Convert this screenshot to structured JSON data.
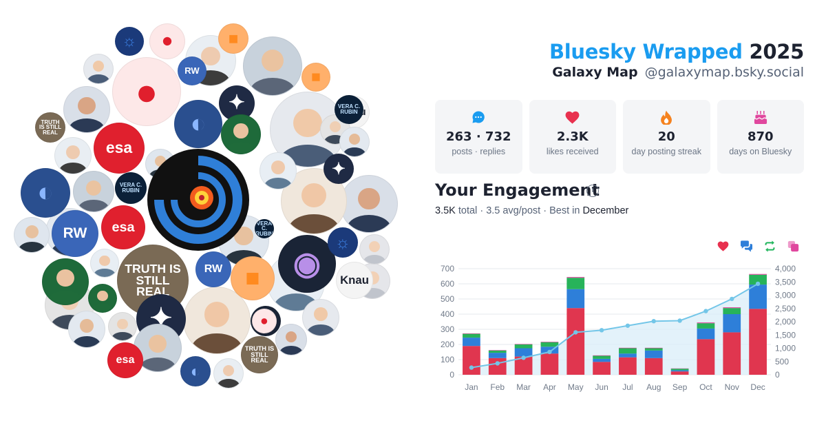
{
  "header": {
    "brand": "Bluesky Wrapped",
    "year": "2025",
    "display_name": "Galaxy Map",
    "handle": "@galaxymap.bsky.social"
  },
  "stats": [
    {
      "icon": "chat-bubble-icon",
      "value": "263 · 732",
      "label": "posts · replies",
      "color": "#1a9cf0"
    },
    {
      "icon": "heart-icon",
      "value": "2.3K",
      "label": "likes received",
      "color": "#e8314f"
    },
    {
      "icon": "flame-icon",
      "value": "20",
      "label": "day posting streak",
      "color": "#f5821f"
    },
    {
      "icon": "cake-icon",
      "value": "870",
      "label": "days on Bluesky",
      "color": "#e0479e"
    }
  ],
  "engagement": {
    "title": "Your Engagement",
    "info_icon": "info-icon",
    "total": "3.5K",
    "total_word": "total",
    "avg": "3.5 avg/post",
    "best_prefix": "Best in",
    "best_month": "December",
    "legend": [
      {
        "name": "likes",
        "icon": "heart-icon",
        "color": "#e8314f"
      },
      {
        "name": "replies",
        "icon": "reply-icon",
        "color": "#2e7fd9"
      },
      {
        "name": "reposts",
        "icon": "repost-icon",
        "color": "#1fb55b"
      },
      {
        "name": "quotes",
        "icon": "quote-icon",
        "color": "#e0479e"
      }
    ]
  },
  "chart_data": {
    "type": "bar",
    "stacked": true,
    "categories": [
      "Jan",
      "Feb",
      "Mar",
      "Apr",
      "May",
      "Jun",
      "Jul",
      "Aug",
      "Sep",
      "Oct",
      "Nov",
      "Dec"
    ],
    "series": [
      {
        "values": [
          190,
          110,
          120,
          140,
          440,
          85,
          115,
          110,
          22,
          235,
          280,
          435
        ],
        "color": "#e0364f"
      },
      {
        "values": [
          55,
          35,
          55,
          45,
          125,
          20,
          25,
          50,
          8,
          70,
          120,
          160
        ],
        "color": "#2e7fd9"
      },
      {
        "values": [
          25,
          15,
          25,
          30,
          75,
          20,
          35,
          15,
          10,
          35,
          40,
          65
        ],
        "color": "#27b35a"
      },
      {
        "values": [
          3,
          3,
          3,
          3,
          5,
          3,
          3,
          3,
          2,
          5,
          5,
          5
        ],
        "color": "#e0479e"
      }
    ],
    "cumulative": {
      "values": [
        270,
        430,
        640,
        860,
        1600,
        1680,
        1850,
        2020,
        2040,
        2400,
        2860,
        3430
      ],
      "color": "#73c6e8"
    },
    "ylim": [
      0,
      700
    ],
    "yticks": [
      0,
      100,
      200,
      300,
      400,
      500,
      600,
      700
    ],
    "y2lim": [
      0,
      4000
    ],
    "y2ticks": [
      "0",
      "500",
      "1,000",
      "1,500",
      "2,000",
      "2,500",
      "3,000",
      "3,500",
      "4,000"
    ],
    "grid": true
  },
  "bubbles": [
    {
      "color": "#1b3a7a",
      "kind": "mark",
      "label": "",
      "glyph": "☼",
      "fg": "#3b7ee0"
    },
    {
      "color": "#fde8e8",
      "kind": "mark",
      "label": "",
      "glyph": "●",
      "fg": "#e01f2d"
    },
    {
      "color": "#e6e9ee",
      "kind": "person",
      "skin": "#f0c9a8",
      "shirt": "#4a5d78"
    },
    {
      "color": "#d9dfe8",
      "kind": "person",
      "skin": "#d9a585",
      "shirt": "#2b3a55"
    },
    {
      "color": "#7a6a55",
      "kind": "mark",
      "label": "TRUTH IS STILL REAL",
      "glyph": "",
      "fg": "#ffffff"
    },
    {
      "color": "#e9eef3",
      "kind": "person",
      "skin": "#eecbb0",
      "shirt": "#3c3c3c"
    },
    {
      "color": "#2a4f8f",
      "kind": "mark",
      "label": "",
      "glyph": "◐",
      "fg": "#8ab6ff"
    },
    {
      "color": "#c8d2dc",
      "kind": "person",
      "skin": "#eac3a0",
      "shirt": "#5b6678"
    },
    {
      "color": "#ffffff",
      "kind": "mark",
      "label": "esa",
      "glyph": "",
      "fg": "#ffffff",
      "bg": "#e0202e"
    },
    {
      "color": "#dfe6ee",
      "kind": "person",
      "skin": "#e7c19f",
      "shirt": "#28343f"
    },
    {
      "color": "#e8eef4",
      "kind": "person",
      "skin": "#efc9ab",
      "shirt": "#5f7b95"
    },
    {
      "color": "#1f2a44",
      "kind": "mark",
      "label": "",
      "glyph": "✦",
      "fg": "#ffffff"
    },
    {
      "color": "#e4e4e4",
      "kind": "person",
      "skin": "#efcfb4",
      "shirt": "#3e4a5a"
    },
    {
      "color": "#e3e9f0",
      "kind": "person",
      "skin": "#e5bb98",
      "shirt": "#2a3b55"
    },
    {
      "color": "#1e6a3a",
      "kind": "person",
      "skin": "#eac2a0",
      "shirt": "#1f6b3a"
    },
    {
      "color": "#3a66b8",
      "kind": "mark",
      "label": "RW",
      "glyph": "",
      "fg": "#ffffff"
    },
    {
      "color": "#ffb06b",
      "kind": "mark",
      "label": "",
      "glyph": "■",
      "fg": "#ff8a1f"
    },
    {
      "color": "#0b2038",
      "kind": "mark",
      "label": "VERA C. RUBIN",
      "glyph": "",
      "fg": "#bfe1ff"
    },
    {
      "color": "#f0e7dc",
      "kind": "person",
      "skin": "#f0c7a6",
      "shirt": "#6b4f3a"
    },
    {
      "color": "#1a2436",
      "kind": "mark",
      "label": "",
      "glyph": "◉",
      "fg": "#b88fe8"
    },
    {
      "color": "#f4f4f4",
      "kind": "mark",
      "label": "Knau",
      "glyph": "",
      "fg": "#1d2230"
    },
    {
      "color": "#e5e6ea",
      "kind": "person",
      "skin": "#f2d1b6",
      "shirt": "#c0c4cc"
    }
  ]
}
